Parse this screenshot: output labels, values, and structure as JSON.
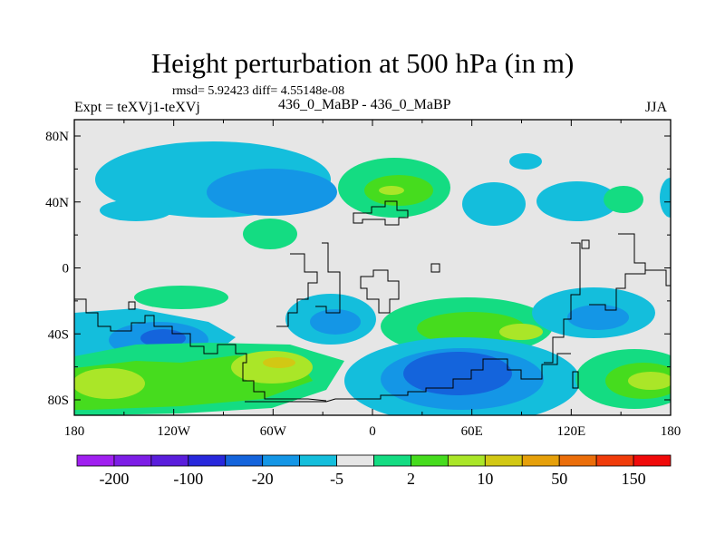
{
  "title": "Height perturbation at 500 hPa (in m)",
  "stats": "rmsd= 5.92423 diff= 4.55148e-08",
  "expt": "Expt = teXVj1-teXVj",
  "subtitle": "436_0_MaBP - 436_0_MaBP",
  "season": "JJA",
  "axes": {
    "y_ticks": [
      {
        "label": "80N",
        "lat": 80
      },
      {
        "label": "40N",
        "lat": 40
      },
      {
        "label": "0",
        "lat": 0
      },
      {
        "label": "40S",
        "lat": -40
      },
      {
        "label": "80S",
        "lat": -80
      }
    ],
    "x_ticks": [
      {
        "label": "180",
        "lon": -180
      },
      {
        "label": "120W",
        "lon": -120
      },
      {
        "label": "60W",
        "lon": -60
      },
      {
        "label": "0",
        "lon": 0
      },
      {
        "label": "60E",
        "lon": 60
      },
      {
        "label": "120E",
        "lon": 120
      },
      {
        "label": "180",
        "lon": 180
      }
    ]
  },
  "colorbar": {
    "colors": [
      "#a020f0",
      "#7d1ee6",
      "#5a1edc",
      "#2828dc",
      "#1464dc",
      "#1496e6",
      "#14bedc",
      "#e6e6e6",
      "#14dc82",
      "#46dc1e",
      "#aae628",
      "#d2c814",
      "#e6a00a",
      "#eb6e0a",
      "#f03c0a",
      "#f00a0a"
    ],
    "labels": [
      {
        "text": "-200",
        "index": 1
      },
      {
        "text": "-100",
        "index": 3
      },
      {
        "text": "-20",
        "index": 5
      },
      {
        "text": "-5",
        "index": 7
      },
      {
        "text": "2",
        "index": 9
      },
      {
        "text": "10",
        "index": 11
      },
      {
        "text": "50",
        "index": 13
      },
      {
        "text": "150",
        "index": 15
      }
    ]
  },
  "map": {
    "background": "#e6e6e6",
    "level_colors": {
      "neg5": "#14bedc",
      "neg20": "#1496e6",
      "neg50": "#1464dc",
      "pos2": "#14dc82",
      "pos5": "#46dc1e",
      "pos10": "#aae628",
      "pos20": "#d2c814"
    }
  }
}
